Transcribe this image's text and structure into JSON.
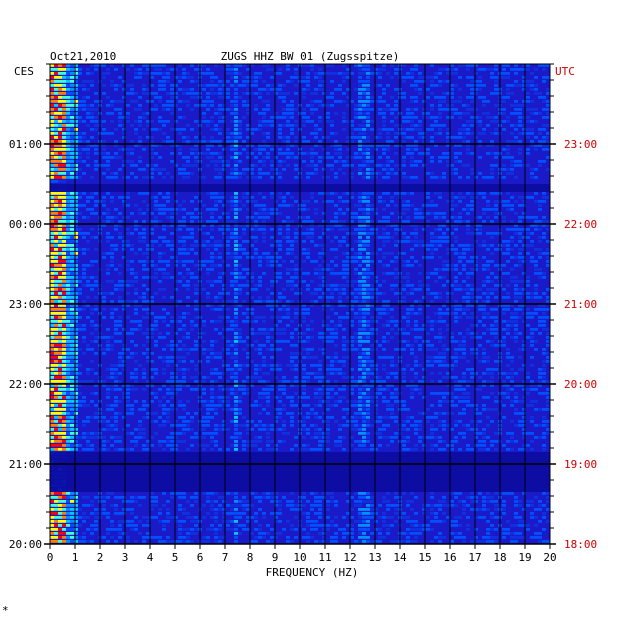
{
  "chart_data": {
    "type": "heatmap",
    "date": "Oct21,2010",
    "title": "ZUGS HHZ BW 01 (Zugsspitze)",
    "xlabel": "FREQUENCY (HZ)",
    "xlim": [
      0,
      20
    ],
    "x_ticks": [
      "0",
      "1",
      "2",
      "3",
      "4",
      "5",
      "6",
      "7",
      "8",
      "9",
      "10",
      "11",
      "12",
      "13",
      "14",
      "15",
      "16",
      "17",
      "18",
      "19",
      "20"
    ],
    "left_axis_label": "CES",
    "right_axis_label": "UTC",
    "left_ticks": [
      "01:00",
      "00:00",
      "23:00",
      "22:00",
      "21:00",
      "20:00"
    ],
    "right_ticks": [
      "23:00",
      "22:00",
      "21:00",
      "20:00",
      "19:00",
      "18:00"
    ],
    "footer_mark": "*",
    "colors": {
      "background": "#1a1ac8",
      "low": "#0a0a9a",
      "mid": "#00d0ff",
      "high": "#ffff00",
      "peak": "#ff0000",
      "utc_text": "#cc0000"
    }
  }
}
